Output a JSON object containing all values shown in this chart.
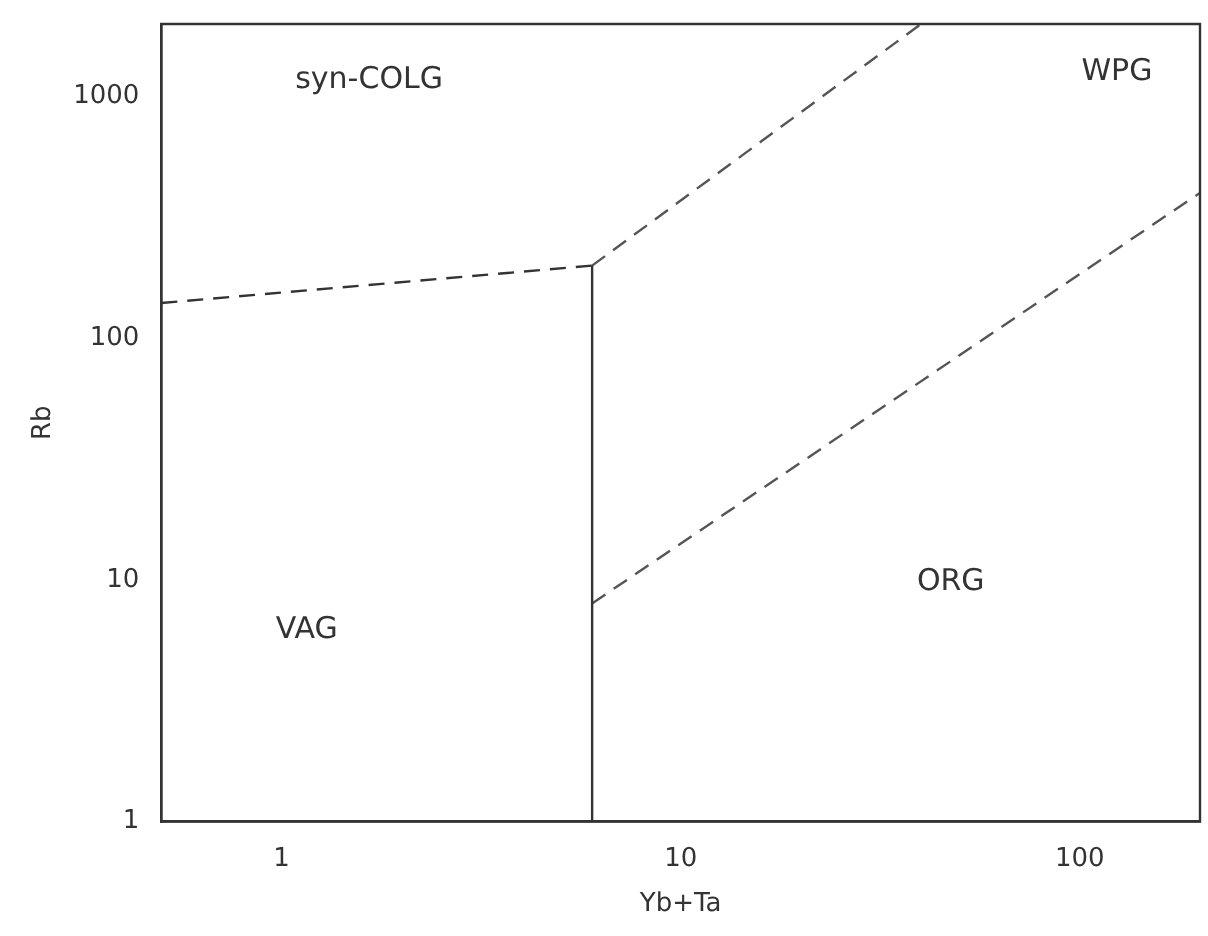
{
  "chart_data": {
    "type": "line",
    "xlabel": "Yb+Ta",
    "ylabel": "Rb",
    "log": "xy",
    "xlim": [
      0.5,
      200
    ],
    "ylim": [
      1,
      2000
    ],
    "xticks": [
      1,
      10,
      100
    ],
    "yticks": [
      1,
      10,
      100,
      1000
    ],
    "grid": false,
    "legend": false,
    "marker": "none",
    "series": [
      {
        "color": "#333333",
        "line_style": "dashed",
        "x": [
          0.5,
          6
        ],
        "values": [
          140,
          200
        ]
      },
      {
        "color": "#333333",
        "line_style": "solid",
        "x": [
          6,
          6
        ],
        "values": [
          1,
          200
        ]
      },
      {
        "color": "#555555",
        "line_style": "dashed",
        "x": [
          6,
          40
        ],
        "values": [
          200,
          2000
        ]
      },
      {
        "color": "#555555",
        "line_style": "dashed",
        "x": [
          6,
          200
        ],
        "values": [
          8,
          400
        ]
      }
    ],
    "annotations": [
      "syn-COLG",
      "WPG",
      "VAG",
      "ORG"
    ]
  }
}
